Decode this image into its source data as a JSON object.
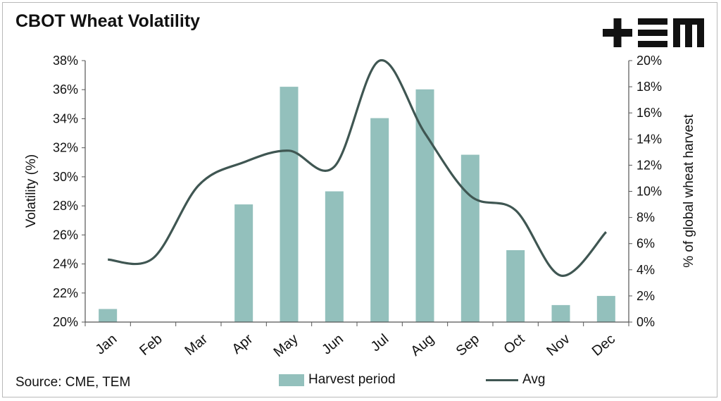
{
  "title": "CBOT Wheat Volatility",
  "source": "Source: CME, TEM",
  "logo_text": "+EM",
  "colors": {
    "bar": "#93c0bc",
    "line": "#3f5652",
    "axis": "#555555",
    "text": "#111111"
  },
  "chart_data": {
    "type": "bar",
    "categories": [
      "Jan",
      "Feb",
      "Mar",
      "Apr",
      "May",
      "Jun",
      "Jul",
      "Aug",
      "Sep",
      "Oct",
      "Nov",
      "Dec"
    ],
    "series": [
      {
        "name": "Harvest period",
        "type": "bar",
        "axis": "right",
        "values": [
          1.0,
          0,
          0,
          9.0,
          18.0,
          10.0,
          15.6,
          17.8,
          12.8,
          5.5,
          1.3,
          2.0
        ]
      },
      {
        "name": "Avg",
        "type": "line",
        "axis": "left",
        "values": [
          24.3,
          24.4,
          29.4,
          31.0,
          31.8,
          30.7,
          38.0,
          33.0,
          28.7,
          27.7,
          23.2,
          26.2
        ]
      }
    ],
    "ylabel": "Volatility (%)",
    "y2label": "% of global wheat harvest",
    "ylim": [
      20,
      38
    ],
    "y2lim": [
      0,
      20
    ],
    "yticks": [
      "20%",
      "22%",
      "24%",
      "26%",
      "28%",
      "30%",
      "32%",
      "34%",
      "36%",
      "38%"
    ],
    "y2ticks": [
      "0%",
      "2%",
      "4%",
      "6%",
      "8%",
      "10%",
      "12%",
      "14%",
      "16%",
      "18%",
      "20%"
    ],
    "grid": false,
    "legend": "bottom"
  }
}
